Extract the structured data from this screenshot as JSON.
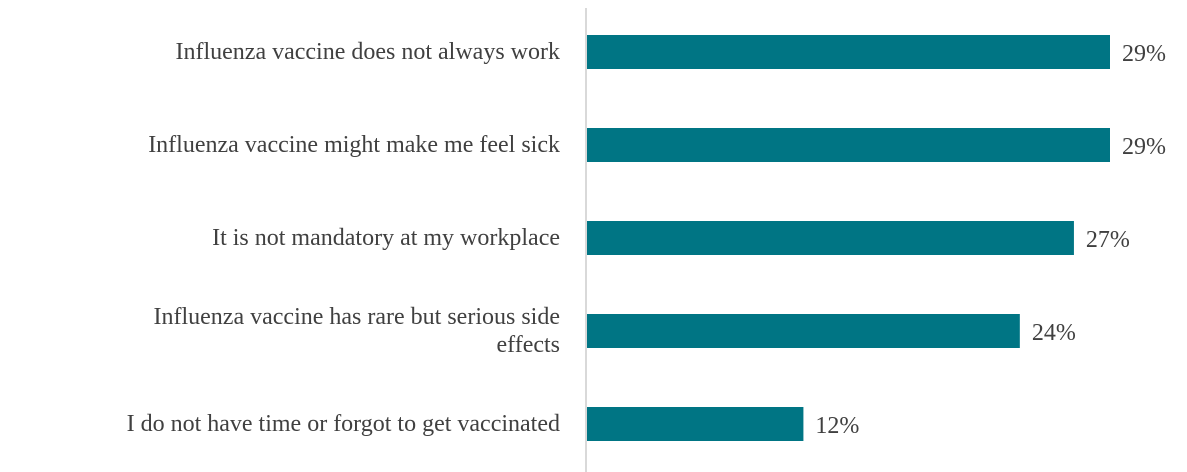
{
  "chart_data": {
    "type": "bar",
    "orientation": "horizontal",
    "categories": [
      [
        "Influenza vaccine does not always work"
      ],
      [
        "Influenza vaccine might make me feel sick"
      ],
      [
        "It is not mandatory at my workplace"
      ],
      [
        "Influenza vaccine has rare but serious side",
        "effects"
      ],
      [
        "I do not have time or forgot to get vaccinated"
      ]
    ],
    "values": [
      29,
      29,
      27,
      24,
      12
    ],
    "value_labels": [
      "29%",
      "29%",
      "27%",
      "24%",
      "12%"
    ],
    "unit": "%",
    "title": "",
    "xlabel": "",
    "ylabel": "",
    "xlim": [
      0,
      29
    ],
    "grid": false,
    "legend": "none",
    "colors": {
      "bar": "#007584",
      "axis": "#d9d9d9",
      "text": "#404040"
    }
  }
}
